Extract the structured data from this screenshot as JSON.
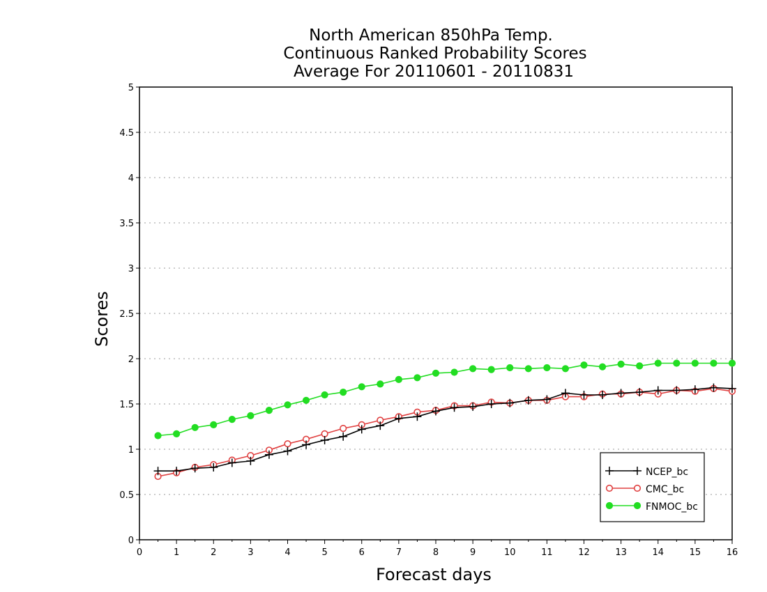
{
  "chart_data": {
    "type": "line",
    "title": [
      "North American 850hPa Temp.",
      "Continuous Ranked Probability Scores",
      "Average For 20110601 - 20110831"
    ],
    "xlabel": "Forecast days",
    "ylabel": "Scores",
    "xlim": [
      0,
      16
    ],
    "ylim": [
      0,
      5
    ],
    "xticks": [
      "0",
      "1",
      "2",
      "3",
      "4",
      "5",
      "6",
      "7",
      "8",
      "9",
      "10",
      "11",
      "12",
      "13",
      "14",
      "15",
      "16"
    ],
    "yticks": [
      "0",
      "0.5",
      "1",
      "1.5",
      "2",
      "2.5",
      "3",
      "3.5",
      "4",
      "4.5",
      "5"
    ],
    "grid": "horizontal dotted",
    "legend_position": "bottom-right",
    "x": [
      0.5,
      1,
      1.5,
      2,
      2.5,
      3,
      3.5,
      4,
      4.5,
      5,
      5.5,
      6,
      6.5,
      7,
      7.5,
      8,
      8.5,
      9,
      9.5,
      10,
      10.5,
      11,
      11.5,
      12,
      12.5,
      13,
      13.5,
      14,
      14.5,
      15,
      15.5,
      16
    ],
    "series": [
      {
        "name": "NCEP_bc",
        "color": "#000000",
        "marker": "plus",
        "values": [
          0.76,
          0.76,
          0.79,
          0.8,
          0.85,
          0.87,
          0.94,
          0.98,
          1.05,
          1.1,
          1.14,
          1.22,
          1.26,
          1.34,
          1.36,
          1.42,
          1.46,
          1.47,
          1.5,
          1.51,
          1.54,
          1.55,
          1.62,
          1.6,
          1.6,
          1.62,
          1.63,
          1.65,
          1.65,
          1.66,
          1.68,
          1.67
        ]
      },
      {
        "name": "CMC_bc",
        "color": "#e04040",
        "marker": "open-circle",
        "values": [
          0.7,
          0.74,
          0.8,
          0.83,
          0.88,
          0.93,
          0.99,
          1.06,
          1.11,
          1.17,
          1.23,
          1.27,
          1.32,
          1.36,
          1.41,
          1.43,
          1.48,
          1.48,
          1.52,
          1.51,
          1.54,
          1.54,
          1.58,
          1.58,
          1.61,
          1.61,
          1.63,
          1.61,
          1.65,
          1.64,
          1.67,
          1.64
        ]
      },
      {
        "name": "FNMOC_bc",
        "color": "#22dd22",
        "marker": "filled-circle",
        "values": [
          1.15,
          1.17,
          1.24,
          1.27,
          1.33,
          1.37,
          1.43,
          1.49,
          1.54,
          1.6,
          1.63,
          1.69,
          1.72,
          1.77,
          1.79,
          1.84,
          1.85,
          1.89,
          1.88,
          1.9,
          1.89,
          1.9,
          1.89,
          1.93,
          1.91,
          1.94,
          1.92,
          1.95,
          1.95,
          1.95,
          1.95,
          1.95
        ]
      }
    ]
  }
}
